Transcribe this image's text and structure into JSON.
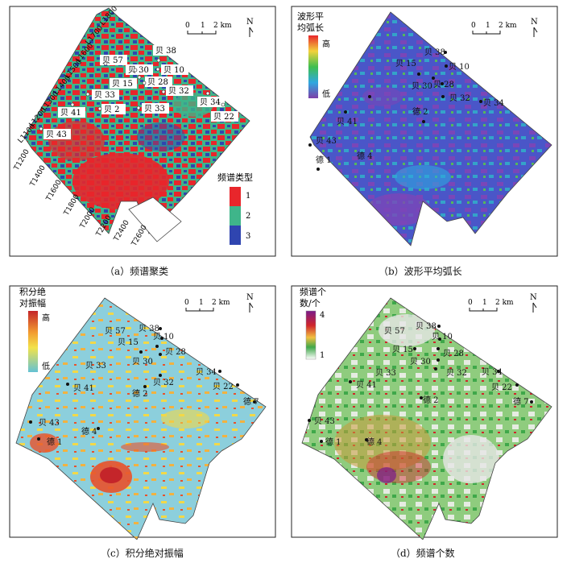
{
  "panels": [
    {
      "id": "a",
      "caption": "（a）频谱聚类",
      "legend_title": "频谱类型",
      "legend_labels": [
        "1",
        "2",
        "3"
      ],
      "legend_colors": [
        "#e8262b",
        "#3fb58a",
        "#2f45b0"
      ],
      "scale": {
        "zero": "0",
        "one": "1",
        "two": "2",
        "unit": "2 km"
      },
      "north": "N",
      "inlines": [
        "L1100",
        "L1200",
        "L1300",
        "L1400",
        "L1500",
        "L1600",
        "L1700",
        "L1800"
      ],
      "traces": [
        "T1200",
        "T1400",
        "T1600",
        "T1800",
        "T2000",
        "T2200",
        "T2400",
        "T2600"
      ],
      "wells": [
        "贝 38",
        "贝 57",
        "贝 30",
        "贝 10",
        "贝 15",
        "贝 28",
        "贝 33",
        "贝 32",
        "贝 34",
        "贝 2",
        "贝 33",
        "贝 22",
        "贝 41",
        "贝 43"
      ]
    },
    {
      "id": "b",
      "caption": "（b）波形平均弧长",
      "legend_title_1": "波形平",
      "legend_title_2": "均弧长",
      "legend_high": "高",
      "legend_low": "低",
      "scale": {
        "zero": "0",
        "one": "1",
        "two": "2",
        "unit": "2 km"
      },
      "north": "N",
      "wells": [
        "贝 38",
        "贝 10",
        "贝 15",
        "贝 30",
        "贝 28",
        "贝 32",
        "贝 34",
        "德 2",
        "贝 41",
        "贝 43",
        "德 4",
        "德 1"
      ]
    },
    {
      "id": "c",
      "caption": "（c）积分绝对振幅",
      "legend_title_1": "积分绝",
      "legend_title_2": "对振幅",
      "legend_high": "高",
      "legend_low": "低",
      "scale": {
        "zero": "0",
        "one": "1",
        "two": "2",
        "unit": "2 km"
      },
      "north": "N",
      "wells": [
        "贝 57",
        "贝 38",
        "贝 10",
        "贝 15",
        "贝 28",
        "贝 30",
        "贝 33",
        "贝 32",
        "贝 34",
        "贝 41",
        "德 2",
        "贝 22",
        "德 7",
        "贝 43",
        "德 4",
        "德 1"
      ]
    },
    {
      "id": "d",
      "caption": "（d）频谱个数",
      "legend_title_1": "频谱个",
      "legend_title_2": "数/个",
      "legend_high": "4",
      "legend_low": "1",
      "scale": {
        "zero": "0",
        "one": "1",
        "two": "2",
        "unit": "2 km"
      },
      "north": "N",
      "wells": [
        "贝 57",
        "贝 38",
        "贝 10",
        "贝 15",
        "贝 28",
        "贝 30",
        "贝 33",
        "贝 32",
        "贝 34",
        "贝 41",
        "德 2",
        "贝 22",
        "德 7",
        "贝 43",
        "德 4",
        "德 1"
      ]
    }
  ]
}
